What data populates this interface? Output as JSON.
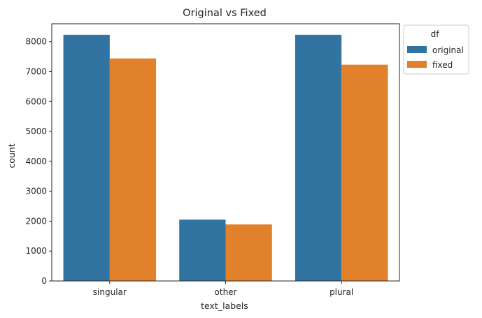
{
  "chart_data": {
    "type": "bar",
    "title": "Original vs Fixed",
    "xlabel": "text_labels",
    "ylabel": "count",
    "categories": [
      "singular",
      "other",
      "plural"
    ],
    "series": [
      {
        "name": "original",
        "values": [
          8230,
          2050,
          8230
        ],
        "color": "#3274a1"
      },
      {
        "name": "fixed",
        "values": [
          7440,
          1890,
          7230
        ],
        "color": "#e1812c"
      }
    ],
    "ylim": [
      0,
      8600
    ],
    "yticks": [
      0,
      1000,
      2000,
      3000,
      4000,
      5000,
      6000,
      7000,
      8000
    ],
    "grid": false,
    "legend": {
      "title": "df",
      "placement": "outside-top-right"
    }
  }
}
